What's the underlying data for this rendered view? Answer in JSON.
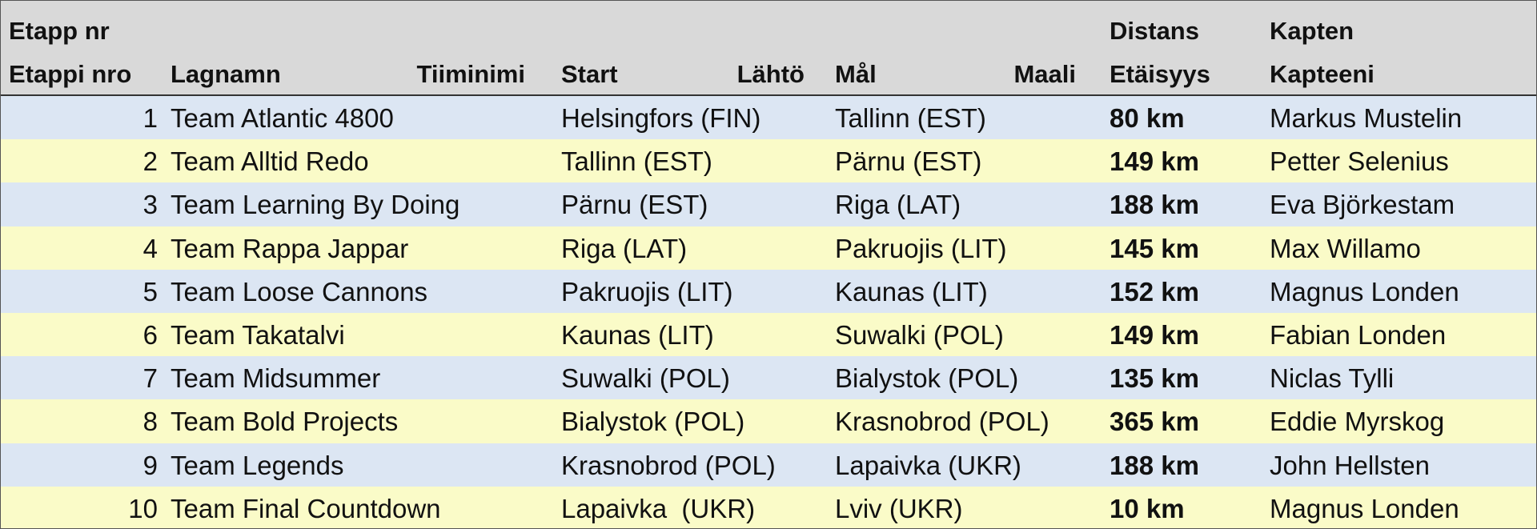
{
  "header": {
    "stage": [
      "Etapp nr",
      "Etappi nro"
    ],
    "team": [
      "Lagnamn",
      "Tiiminimi"
    ],
    "start": [
      "Start",
      "Lähtö"
    ],
    "finish": [
      "Mål",
      "Maali"
    ],
    "distance": [
      "Distans",
      "Etäisyys"
    ],
    "captain": [
      "Kapten",
      "Kapteeni"
    ]
  },
  "rows": [
    [
      1,
      "Team Atlantic 4800",
      "Helsingfors (FIN)",
      "Tallinn (EST)",
      "80 km",
      "Markus Mustelin"
    ],
    [
      2,
      "Team Alltid Redo",
      "Tallinn (EST)",
      "Pärnu (EST)",
      "149 km",
      "Petter Selenius"
    ],
    [
      3,
      "Team Learning By Doing",
      "Pärnu (EST)",
      "Riga (LAT)",
      "188 km",
      "Eva Björkestam"
    ],
    [
      4,
      "Team Rappa Jappar",
      "Riga (LAT)",
      "Pakruojis (LIT)",
      "145 km",
      "Max Willamo"
    ],
    [
      5,
      "Team Loose Cannons",
      "Pakruojis (LIT)",
      "Kaunas (LIT)",
      "152 km",
      "Magnus Londen"
    ],
    [
      6,
      "Team Takatalvi",
      "Kaunas (LIT)",
      "Suwalki (POL)",
      "149 km",
      "Fabian Londen"
    ],
    [
      7,
      "Team Midsummer",
      "Suwalki (POL)",
      "Bialystok (POL)",
      "135 km",
      "Niclas Tylli"
    ],
    [
      8,
      "Team Bold Projects",
      "Bialystok (POL)",
      "Krasnobrod (POL)",
      "365 km",
      "Eddie Myrskog"
    ],
    [
      9,
      "Team Legends",
      "Krasnobrod (POL)",
      "Lapaivka (UKR)",
      "188 km",
      "John Hellsten"
    ],
    [
      10,
      "Team Final Countdown",
      "Lapaivka  (UKR)",
      "Lviv (UKR)",
      "10 km",
      "Magnus Londen"
    ]
  ]
}
